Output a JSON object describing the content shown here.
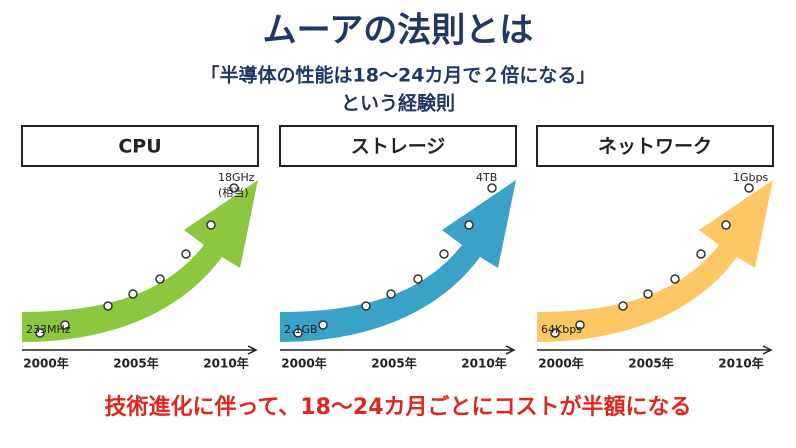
{
  "header": {
    "title": "ムーアの法則とは",
    "subtitle_lines": [
      "「半導体の性能は18〜24カ月で２倍になる」",
      "という経験則"
    ]
  },
  "panels": [
    {
      "label": "CPU",
      "start": "233MHz",
      "end": [
        "18GHz",
        "(相当)"
      ],
      "axis": [
        "2000年",
        "2005年",
        "2010年"
      ]
    },
    {
      "label": "ストレージ",
      "start": "2.1GB",
      "end": [
        "4TB"
      ],
      "axis": [
        "2000年",
        "2005年",
        "2010年"
      ]
    },
    {
      "label": "ネットワーク",
      "start": "64Kbps",
      "end": [
        "1Gbps"
      ],
      "axis": [
        "2000年",
        "2005年",
        "2010年"
      ]
    }
  ],
  "footer": "技術進化に伴って、18〜24カ月ごとにコストが半額になる"
}
